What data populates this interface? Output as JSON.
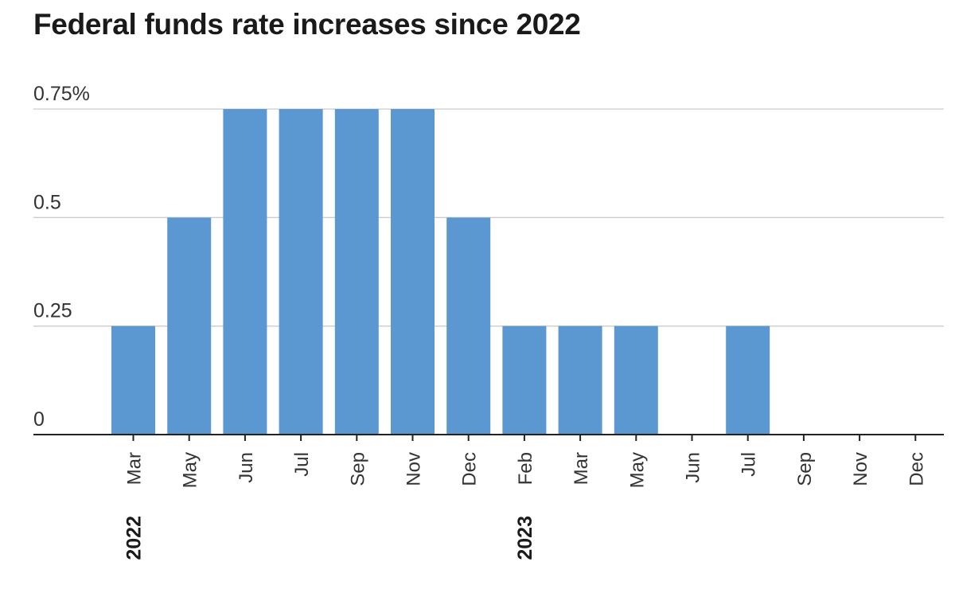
{
  "chart_data": {
    "type": "bar",
    "title": "Federal funds rate increases since 2022",
    "xlabel": "",
    "ylabel": "",
    "ylim": [
      0,
      0.75
    ],
    "yticks": [
      "0",
      "0.25",
      "0.5",
      "0.75%"
    ],
    "ytick_values": [
      0,
      0.25,
      0.5,
      0.75
    ],
    "grid": true,
    "bar_color": "#5b97d1",
    "categories": [
      "Mar",
      "May",
      "Jun",
      "Jul",
      "Sep",
      "Nov",
      "Dec",
      "Feb",
      "Mar",
      "May",
      "Jun",
      "Jul",
      "Sep",
      "Nov",
      "Dec"
    ],
    "values": [
      0.25,
      0.5,
      0.75,
      0.75,
      0.75,
      0.75,
      0.5,
      0.25,
      0.25,
      0.25,
      0,
      0.25,
      0,
      0,
      0
    ],
    "year_labels": [
      {
        "label": "2022",
        "category_index": 0
      },
      {
        "label": "2023",
        "category_index": 7
      }
    ]
  }
}
